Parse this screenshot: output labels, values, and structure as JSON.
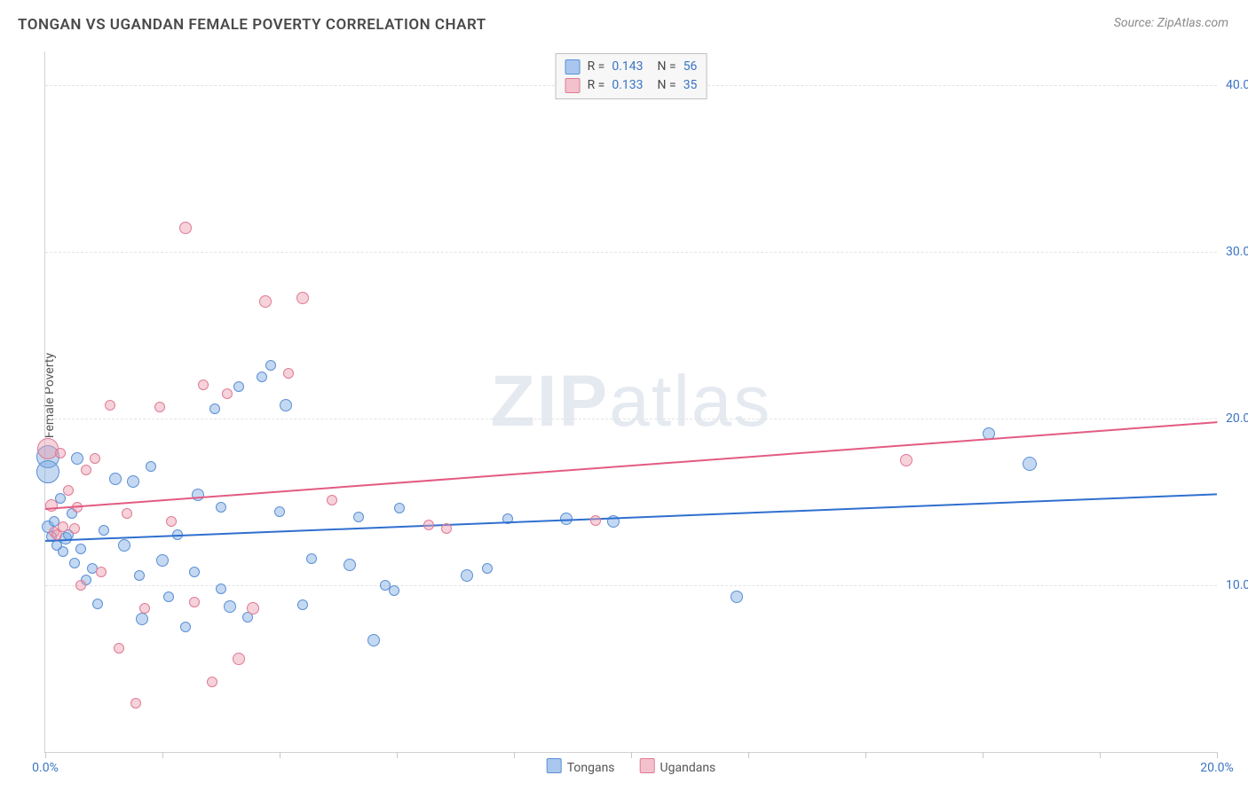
{
  "title": "TONGAN VS UGANDAN FEMALE POVERTY CORRELATION CHART",
  "source": "Source: ZipAtlas.com",
  "ylabel": "Female Poverty",
  "watermark": {
    "bold": "ZIP",
    "rest": "atlas"
  },
  "chart": {
    "type": "scatter",
    "background_color": "#ffffff",
    "grid_color": "#e3e3e3",
    "axis_color": "#d2d2d2",
    "label_color": "#3a74c4",
    "xlim": [
      0,
      20
    ],
    "ylim": [
      0,
      42
    ],
    "yticks": [
      10,
      20,
      30,
      40
    ],
    "ytick_labels": [
      "10.0%",
      "20.0%",
      "30.0%",
      "40.0%"
    ],
    "xticks": [
      0,
      2,
      4,
      6,
      8,
      10,
      12,
      14,
      16,
      18,
      20
    ],
    "xtick_labels_visible": {
      "0": "0.0%",
      "20": "20.0%"
    },
    "top_legend": [
      {
        "swatch_fill": "#a9c7ee",
        "swatch_border": "#5a8fd6",
        "r": "0.143",
        "n": "56"
      },
      {
        "swatch_fill": "#f3c1cc",
        "swatch_border": "#e07a94",
        "r": "0.133",
        "n": "35"
      }
    ],
    "bottom_legend": [
      {
        "swatch_fill": "#a9c7ee",
        "swatch_border": "#5a8fd6",
        "label": "Tongans"
      },
      {
        "swatch_fill": "#f3c1cc",
        "swatch_border": "#e07a94",
        "label": "Ugandans"
      }
    ],
    "series": [
      {
        "name": "Tongans",
        "fill": "rgba(125,170,225,0.45)",
        "stroke": "#5a8fd6",
        "trend_color": "#2f6fcf",
        "trend": {
          "y_at_x0": 12.7,
          "y_at_xmax": 15.5
        },
        "points": [
          {
            "x": 0.05,
            "y": 17.7,
            "r": 13
          },
          {
            "x": 0.05,
            "y": 16.8,
            "r": 13
          },
          {
            "x": 0.05,
            "y": 13.5,
            "r": 7
          },
          {
            "x": 0.1,
            "y": 12.9,
            "r": 6
          },
          {
            "x": 0.15,
            "y": 13.8,
            "r": 6
          },
          {
            "x": 0.2,
            "y": 12.4,
            "r": 6
          },
          {
            "x": 0.25,
            "y": 15.2,
            "r": 6
          },
          {
            "x": 0.3,
            "y": 12.0,
            "r": 6
          },
          {
            "x": 0.35,
            "y": 12.8,
            "r": 7
          },
          {
            "x": 0.4,
            "y": 13.0,
            "r": 6
          },
          {
            "x": 0.45,
            "y": 14.3,
            "r": 6
          },
          {
            "x": 0.5,
            "y": 11.3,
            "r": 6
          },
          {
            "x": 0.55,
            "y": 17.6,
            "r": 7
          },
          {
            "x": 0.6,
            "y": 12.2,
            "r": 6
          },
          {
            "x": 0.7,
            "y": 10.3,
            "r": 6
          },
          {
            "x": 0.8,
            "y": 11.0,
            "r": 6
          },
          {
            "x": 0.9,
            "y": 8.9,
            "r": 6
          },
          {
            "x": 1.0,
            "y": 13.3,
            "r": 6
          },
          {
            "x": 1.2,
            "y": 16.4,
            "r": 7
          },
          {
            "x": 1.35,
            "y": 12.4,
            "r": 7
          },
          {
            "x": 1.5,
            "y": 16.2,
            "r": 7
          },
          {
            "x": 1.6,
            "y": 10.6,
            "r": 6
          },
          {
            "x": 1.65,
            "y": 8.0,
            "r": 7
          },
          {
            "x": 1.8,
            "y": 17.1,
            "r": 6
          },
          {
            "x": 2.0,
            "y": 11.5,
            "r": 7
          },
          {
            "x": 2.1,
            "y": 9.3,
            "r": 6
          },
          {
            "x": 2.25,
            "y": 13.0,
            "r": 6
          },
          {
            "x": 2.4,
            "y": 7.5,
            "r": 6
          },
          {
            "x": 2.55,
            "y": 10.8,
            "r": 6
          },
          {
            "x": 2.6,
            "y": 15.4,
            "r": 7
          },
          {
            "x": 2.9,
            "y": 20.6,
            "r": 6
          },
          {
            "x": 3.0,
            "y": 14.7,
            "r": 6
          },
          {
            "x": 3.15,
            "y": 8.7,
            "r": 7
          },
          {
            "x": 3.3,
            "y": 21.9,
            "r": 6
          },
          {
            "x": 3.45,
            "y": 8.1,
            "r": 6
          },
          {
            "x": 3.7,
            "y": 22.5,
            "r": 6
          },
          {
            "x": 3.85,
            "y": 23.2,
            "r": 6
          },
          {
            "x": 4.0,
            "y": 14.4,
            "r": 6
          },
          {
            "x": 4.1,
            "y": 20.8,
            "r": 7
          },
          {
            "x": 4.4,
            "y": 8.8,
            "r": 6
          },
          {
            "x": 4.55,
            "y": 11.6,
            "r": 6
          },
          {
            "x": 5.2,
            "y": 11.2,
            "r": 7
          },
          {
            "x": 5.35,
            "y": 14.1,
            "r": 6
          },
          {
            "x": 5.6,
            "y": 6.7,
            "r": 7
          },
          {
            "x": 5.8,
            "y": 10.0,
            "r": 6
          },
          {
            "x": 5.95,
            "y": 9.7,
            "r": 6
          },
          {
            "x": 6.05,
            "y": 14.6,
            "r": 6
          },
          {
            "x": 7.2,
            "y": 10.6,
            "r": 7
          },
          {
            "x": 7.55,
            "y": 11.0,
            "r": 6
          },
          {
            "x": 7.9,
            "y": 14.0,
            "r": 6
          },
          {
            "x": 8.9,
            "y": 14.0,
            "r": 7
          },
          {
            "x": 9.7,
            "y": 13.8,
            "r": 7
          },
          {
            "x": 11.8,
            "y": 9.3,
            "r": 7
          },
          {
            "x": 16.1,
            "y": 19.1,
            "r": 7
          },
          {
            "x": 16.8,
            "y": 17.3,
            "r": 8
          },
          {
            "x": 3.0,
            "y": 9.8,
            "r": 6
          }
        ]
      },
      {
        "name": "Ugandans",
        "fill": "rgba(235,155,175,0.45)",
        "stroke": "#e07a94",
        "trend_color": "#e35b82",
        "trend": {
          "y_at_x0": 14.6,
          "y_at_xmax": 19.8
        },
        "points": [
          {
            "x": 0.05,
            "y": 18.2,
            "r": 12
          },
          {
            "x": 0.1,
            "y": 14.8,
            "r": 7
          },
          {
            "x": 0.15,
            "y": 13.2,
            "r": 6
          },
          {
            "x": 0.2,
            "y": 13.0,
            "r": 6
          },
          {
            "x": 0.25,
            "y": 17.9,
            "r": 6
          },
          {
            "x": 0.3,
            "y": 13.5,
            "r": 6
          },
          {
            "x": 0.4,
            "y": 15.7,
            "r": 6
          },
          {
            "x": 0.5,
            "y": 13.4,
            "r": 6
          },
          {
            "x": 0.55,
            "y": 14.7,
            "r": 6
          },
          {
            "x": 0.6,
            "y": 10.0,
            "r": 6
          },
          {
            "x": 0.7,
            "y": 16.9,
            "r": 6
          },
          {
            "x": 0.85,
            "y": 17.6,
            "r": 6
          },
          {
            "x": 0.95,
            "y": 10.8,
            "r": 6
          },
          {
            "x": 1.1,
            "y": 20.8,
            "r": 6
          },
          {
            "x": 1.25,
            "y": 6.2,
            "r": 6
          },
          {
            "x": 1.4,
            "y": 14.3,
            "r": 6
          },
          {
            "x": 1.55,
            "y": 2.9,
            "r": 6
          },
          {
            "x": 1.7,
            "y": 8.6,
            "r": 6
          },
          {
            "x": 1.95,
            "y": 20.7,
            "r": 6
          },
          {
            "x": 2.15,
            "y": 13.8,
            "r": 6
          },
          {
            "x": 2.4,
            "y": 31.4,
            "r": 7
          },
          {
            "x": 2.7,
            "y": 22.0,
            "r": 6
          },
          {
            "x": 2.85,
            "y": 4.2,
            "r": 6
          },
          {
            "x": 3.1,
            "y": 21.5,
            "r": 6
          },
          {
            "x": 3.3,
            "y": 5.6,
            "r": 7
          },
          {
            "x": 3.55,
            "y": 8.6,
            "r": 7
          },
          {
            "x": 3.75,
            "y": 27.0,
            "r": 7
          },
          {
            "x": 4.15,
            "y": 22.7,
            "r": 6
          },
          {
            "x": 4.4,
            "y": 27.2,
            "r": 7
          },
          {
            "x": 4.9,
            "y": 15.1,
            "r": 6
          },
          {
            "x": 6.55,
            "y": 13.6,
            "r": 6
          },
          {
            "x": 6.85,
            "y": 13.4,
            "r": 6
          },
          {
            "x": 9.4,
            "y": 13.9,
            "r": 6
          },
          {
            "x": 14.7,
            "y": 17.5,
            "r": 7
          },
          {
            "x": 2.55,
            "y": 9.0,
            "r": 6
          }
        ]
      }
    ]
  }
}
